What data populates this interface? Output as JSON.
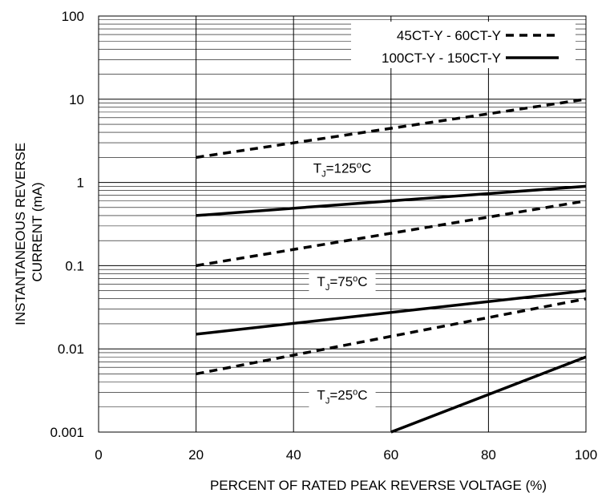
{
  "chart_data": {
    "type": "line",
    "xlabel": "PERCENT OF RATED PEAK REVERSE VOLTAGE (%)",
    "ylabel_lines": [
      "INSTANTANEOUS REVERSE",
      "CURRENT (mA)"
    ],
    "xlim": [
      0,
      100
    ],
    "ylim": [
      0.001,
      100
    ],
    "yscale": "log",
    "grid": true,
    "legend_position": "top-right",
    "x_ticks": [
      0,
      20,
      40,
      60,
      80,
      100
    ],
    "x_tick_labels": [
      "0",
      "20",
      "40",
      "60",
      "80",
      "100"
    ],
    "y_ticks": [
      0.001,
      0.01,
      0.1,
      1,
      10,
      100
    ],
    "y_tick_labels": [
      "0.001",
      "0.01",
      "0.1",
      "1",
      "10",
      "100"
    ],
    "series": [
      {
        "name": "45CT-Y - 60CT-Y",
        "style": "dashed",
        "condition": "125",
        "x": [
          20,
          100
        ],
        "y": [
          2,
          10
        ]
      },
      {
        "name": "100CT-Y - 150CT-Y",
        "style": "solid",
        "condition": "125",
        "x": [
          20,
          100
        ],
        "y": [
          0.4,
          0.9
        ]
      },
      {
        "name": "45CT-Y - 60CT-Y",
        "style": "dashed",
        "condition": "75",
        "x": [
          20,
          100
        ],
        "y": [
          0.1,
          0.6
        ]
      },
      {
        "name": "100CT-Y - 150CT-Y",
        "style": "solid",
        "condition": "75",
        "x": [
          20,
          100
        ],
        "y": [
          0.015,
          0.05
        ]
      },
      {
        "name": "45CT-Y - 60CT-Y",
        "style": "dashed",
        "condition": "25",
        "x": [
          20,
          100
        ],
        "y": [
          0.005,
          0.04
        ]
      },
      {
        "name": "100CT-Y - 150CT-Y",
        "style": "solid",
        "condition": "25",
        "x": [
          60,
          100
        ],
        "y": [
          0.001,
          0.008
        ]
      }
    ],
    "legend": [
      {
        "label": "45CT-Y - 60CT-Y",
        "style": "dashed"
      },
      {
        "label": "100CT-Y - 150CT-Y",
        "style": "solid"
      }
    ],
    "annotations": [
      {
        "prefix": "T",
        "sub": "J",
        "eq": "=",
        "value": "125",
        "sup": "o",
        "unit": "C",
        "at_x": 50,
        "at_y": 1.5
      },
      {
        "prefix": "T",
        "sub": "J",
        "eq": "=",
        "value": "75",
        "sup": "o",
        "unit": "C",
        "at_x": 50,
        "at_y": 0.065
      },
      {
        "prefix": "T",
        "sub": "J",
        "eq": "=",
        "value": "25",
        "sup": "o",
        "unit": "C",
        "at_x": 50,
        "at_y": 0.0028
      }
    ],
    "colors": {
      "line": "#000000",
      "grid": "#000000",
      "background": "#ffffff"
    }
  }
}
